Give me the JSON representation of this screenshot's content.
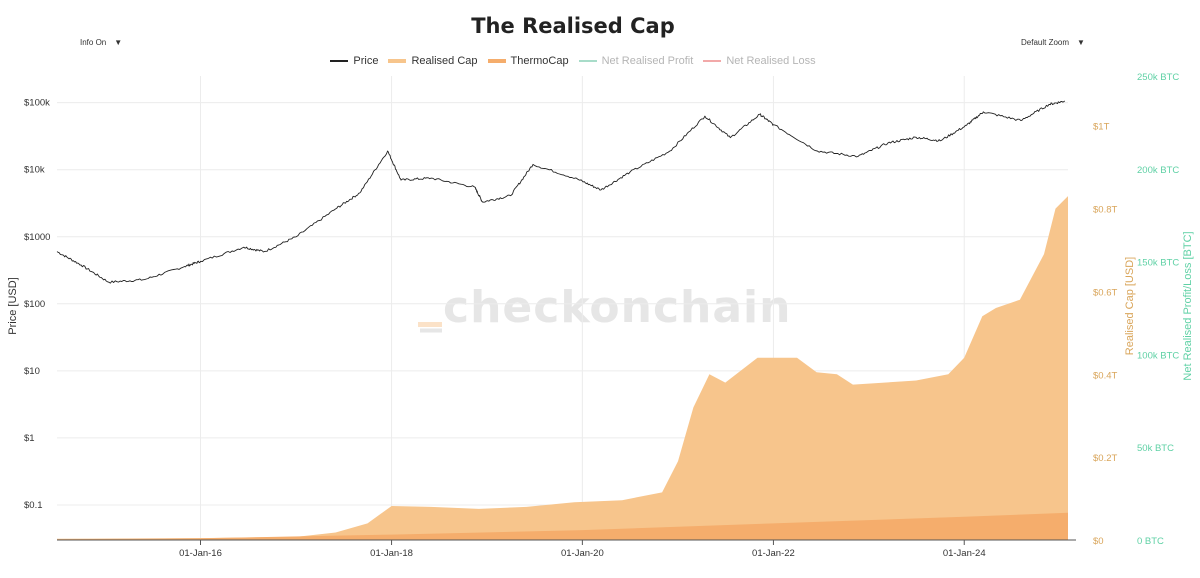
{
  "page": {
    "title": "The Realised Cap",
    "info_toggle": "Info On",
    "zoom_select": "Default Zoom",
    "watermark": "_checkonchain",
    "colors": {
      "price": "#222222",
      "realised_cap": "#f7c58c",
      "thermocap": "#f5ad6c",
      "net_profit": "#a8dcc9",
      "net_loss": "#f2a9a9",
      "right_axis_text": "#d9a55a",
      "btc_axis_text": "#5fd1a5"
    }
  },
  "chart_data": {
    "type": "area",
    "title": "The Realised Cap",
    "legend": [
      {
        "name": "Price",
        "style": "line",
        "color": "#222222",
        "active": true
      },
      {
        "name": "Realised Cap",
        "style": "area",
        "color": "#f7c58c",
        "active": true
      },
      {
        "name": "ThermoCap",
        "style": "area",
        "color": "#f5ad6c",
        "active": true
      },
      {
        "name": "Net Realised Profit",
        "style": "line",
        "color": "#a8dcc9",
        "active": false
      },
      {
        "name": "Net Realised Loss",
        "style": "line",
        "color": "#f2a9a9",
        "active": false
      }
    ],
    "legend_position": "top-center",
    "grid": true,
    "x_axis": {
      "type": "date",
      "ticks": [
        "01-Jan-16",
        "01-Jan-18",
        "01-Jan-20",
        "01-Jan-22",
        "01-Jan-24"
      ],
      "range": [
        "2014-07-01",
        "2025-02-01"
      ]
    },
    "y_axis_left": {
      "label": "Price [USD]",
      "scale": "log",
      "range": [
        0.03,
        250000
      ],
      "ticks": [
        "$0.1",
        "$1",
        "$10",
        "$100",
        "$1000",
        "$10k",
        "$100k"
      ],
      "tick_values": [
        0.1,
        1,
        10,
        100,
        1000,
        10000,
        100000
      ]
    },
    "y_axis_right1": {
      "label": "Realised Cap [USD]",
      "range": [
        0,
        1120000000000.0
      ],
      "ticks": [
        "$0",
        "$0.2T",
        "$0.4T",
        "$0.6T",
        "$0.8T",
        "$1T"
      ],
      "tick_values": [
        0,
        200000000000.0,
        400000000000.0,
        600000000000.0,
        800000000000.0,
        1000000000000.0
      ]
    },
    "y_axis_right2": {
      "label": "Net Realised Profit/Loss [BTC]",
      "range": [
        0,
        250000
      ],
      "ticks": [
        "0 BTC",
        "50k BTC",
        "100k BTC",
        "150k BTC",
        "200k BTC",
        "250k BTC"
      ],
      "tick_values": [
        0,
        50000,
        100000,
        150000,
        200000,
        250000
      ]
    },
    "series": [
      {
        "name": "Price",
        "points": [
          [
            "2014-07-01",
            600
          ],
          [
            "2014-10-01",
            380
          ],
          [
            "2015-01-15",
            210
          ],
          [
            "2015-06-01",
            230
          ],
          [
            "2015-11-01",
            360
          ],
          [
            "2016-01-01",
            430
          ],
          [
            "2016-06-15",
            700
          ],
          [
            "2016-09-01",
            600
          ],
          [
            "2017-01-01",
            1000
          ],
          [
            "2017-06-01",
            2600
          ],
          [
            "2017-09-01",
            4500
          ],
          [
            "2017-12-17",
            19000
          ],
          [
            "2018-02-06",
            7000
          ],
          [
            "2018-06-01",
            7500
          ],
          [
            "2018-11-15",
            5500
          ],
          [
            "2018-12-15",
            3300
          ],
          [
            "2019-04-01",
            4100
          ],
          [
            "2019-06-26",
            12000
          ],
          [
            "2019-12-15",
            7200
          ],
          [
            "2020-03-12",
            5000
          ],
          [
            "2020-07-01",
            9200
          ],
          [
            "2020-12-01",
            19000
          ],
          [
            "2021-04-14",
            63000
          ],
          [
            "2021-07-20",
            30000
          ],
          [
            "2021-11-10",
            67000
          ],
          [
            "2022-01-01",
            47000
          ],
          [
            "2022-06-18",
            19000
          ],
          [
            "2022-11-21",
            15800
          ],
          [
            "2023-03-15",
            25000
          ],
          [
            "2023-07-01",
            30500
          ],
          [
            "2023-10-01",
            27000
          ],
          [
            "2024-01-10",
            46000
          ],
          [
            "2024-03-14",
            73000
          ],
          [
            "2024-08-05",
            54000
          ],
          [
            "2024-11-20",
            94000
          ],
          [
            "2025-01-20",
            106000
          ]
        ]
      },
      {
        "name": "Realised Cap",
        "points": [
          [
            "2014-07-01",
            3000000000.0
          ],
          [
            "2016-01-01",
            4500000000.0
          ],
          [
            "2017-01-01",
            7500000000.0
          ],
          [
            "2017-06-01",
            18000000000.0
          ],
          [
            "2017-10-01",
            40000000000.0
          ],
          [
            "2018-01-01",
            82000000000.0
          ],
          [
            "2018-06-01",
            80000000000.0
          ],
          [
            "2018-12-01",
            75000000000.0
          ],
          [
            "2019-06-01",
            80000000000.0
          ],
          [
            "2019-12-01",
            91000000000.0
          ],
          [
            "2020-06-01",
            96000000000.0
          ],
          [
            "2020-11-01",
            115000000000.0
          ],
          [
            "2021-01-01",
            190000000000.0
          ],
          [
            "2021-03-01",
            320000000000.0
          ],
          [
            "2021-05-01",
            400000000000.0
          ],
          [
            "2021-07-01",
            380000000000.0
          ],
          [
            "2021-11-01",
            440000000000.0
          ],
          [
            "2022-04-01",
            440000000000.0
          ],
          [
            "2022-06-15",
            405000000000.0
          ],
          [
            "2022-09-01",
            400000000000.0
          ],
          [
            "2022-11-01",
            375000000000.0
          ],
          [
            "2023-03-01",
            380000000000.0
          ],
          [
            "2023-07-01",
            385000000000.0
          ],
          [
            "2023-11-01",
            400000000000.0
          ],
          [
            "2024-01-01",
            440000000000.0
          ],
          [
            "2024-03-10",
            540000000000.0
          ],
          [
            "2024-05-01",
            560000000000.0
          ],
          [
            "2024-08-01",
            580000000000.0
          ],
          [
            "2024-11-01",
            690000000000.0
          ],
          [
            "2024-12-15",
            800000000000.0
          ],
          [
            "2025-02-01",
            830000000000.0
          ]
        ]
      },
      {
        "name": "ThermoCap",
        "points": [
          [
            "2014-07-01",
            2000000000.0
          ],
          [
            "2016-01-01",
            4000000000.0
          ],
          [
            "2018-01-01",
            13000000000.0
          ],
          [
            "2020-01-01",
            24000000000.0
          ],
          [
            "2022-01-01",
            40000000000.0
          ],
          [
            "2024-01-01",
            56000000000.0
          ],
          [
            "2025-02-01",
            66000000000.0
          ]
        ]
      },
      {
        "name": "Net Realised Profit",
        "points": []
      },
      {
        "name": "Net Realised Loss",
        "points": []
      }
    ]
  }
}
